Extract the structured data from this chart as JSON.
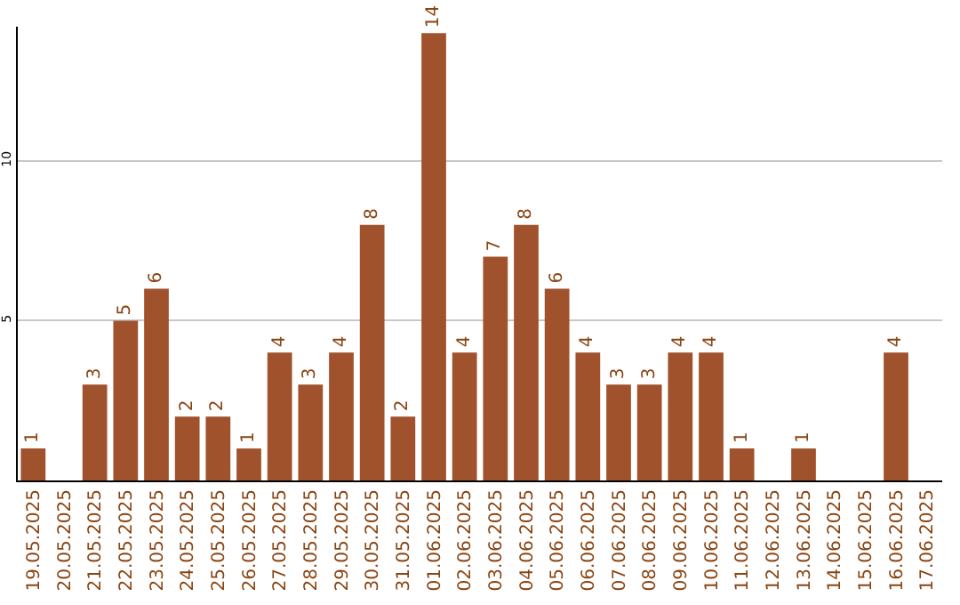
{
  "chart_data": {
    "type": "bar",
    "categories": [
      "19.05.2025",
      "20.05.2025",
      "21.05.2025",
      "22.05.2025",
      "23.05.2025",
      "24.05.2025",
      "25.05.2025",
      "26.05.2025",
      "27.05.2025",
      "28.05.2025",
      "29.05.2025",
      "30.05.2025",
      "31.05.2025",
      "01.06.2025",
      "02.06.2025",
      "03.06.2025",
      "04.06.2025",
      "05.06.2025",
      "06.06.2025",
      "07.06.2025",
      "08.06.2025",
      "09.06.2025",
      "10.06.2025",
      "11.06.2025",
      "12.06.2025",
      "13.06.2025",
      "14.06.2025",
      "15.06.2025",
      "16.06.2025",
      "17.06.2025"
    ],
    "values": [
      1,
      0,
      3,
      5,
      6,
      2,
      2,
      1,
      4,
      3,
      4,
      8,
      2,
      14,
      4,
      7,
      8,
      6,
      4,
      3,
      3,
      4,
      4,
      1,
      0,
      1,
      0,
      0,
      4,
      0
    ],
    "value_labels": [
      "1",
      null,
      "3",
      "5",
      "6",
      "2",
      "2",
      "1",
      "4",
      "3",
      "4",
      "8",
      "2",
      "14",
      "4",
      "7",
      "8",
      "6",
      "4",
      "3",
      "3",
      "4",
      "4",
      "1",
      null,
      "1",
      null,
      null,
      "4",
      null
    ],
    "color": "#a0522d",
    "ylim": [
      0,
      14.2
    ],
    "yticks": [
      5,
      10
    ],
    "grid": "y",
    "legend": false
  }
}
